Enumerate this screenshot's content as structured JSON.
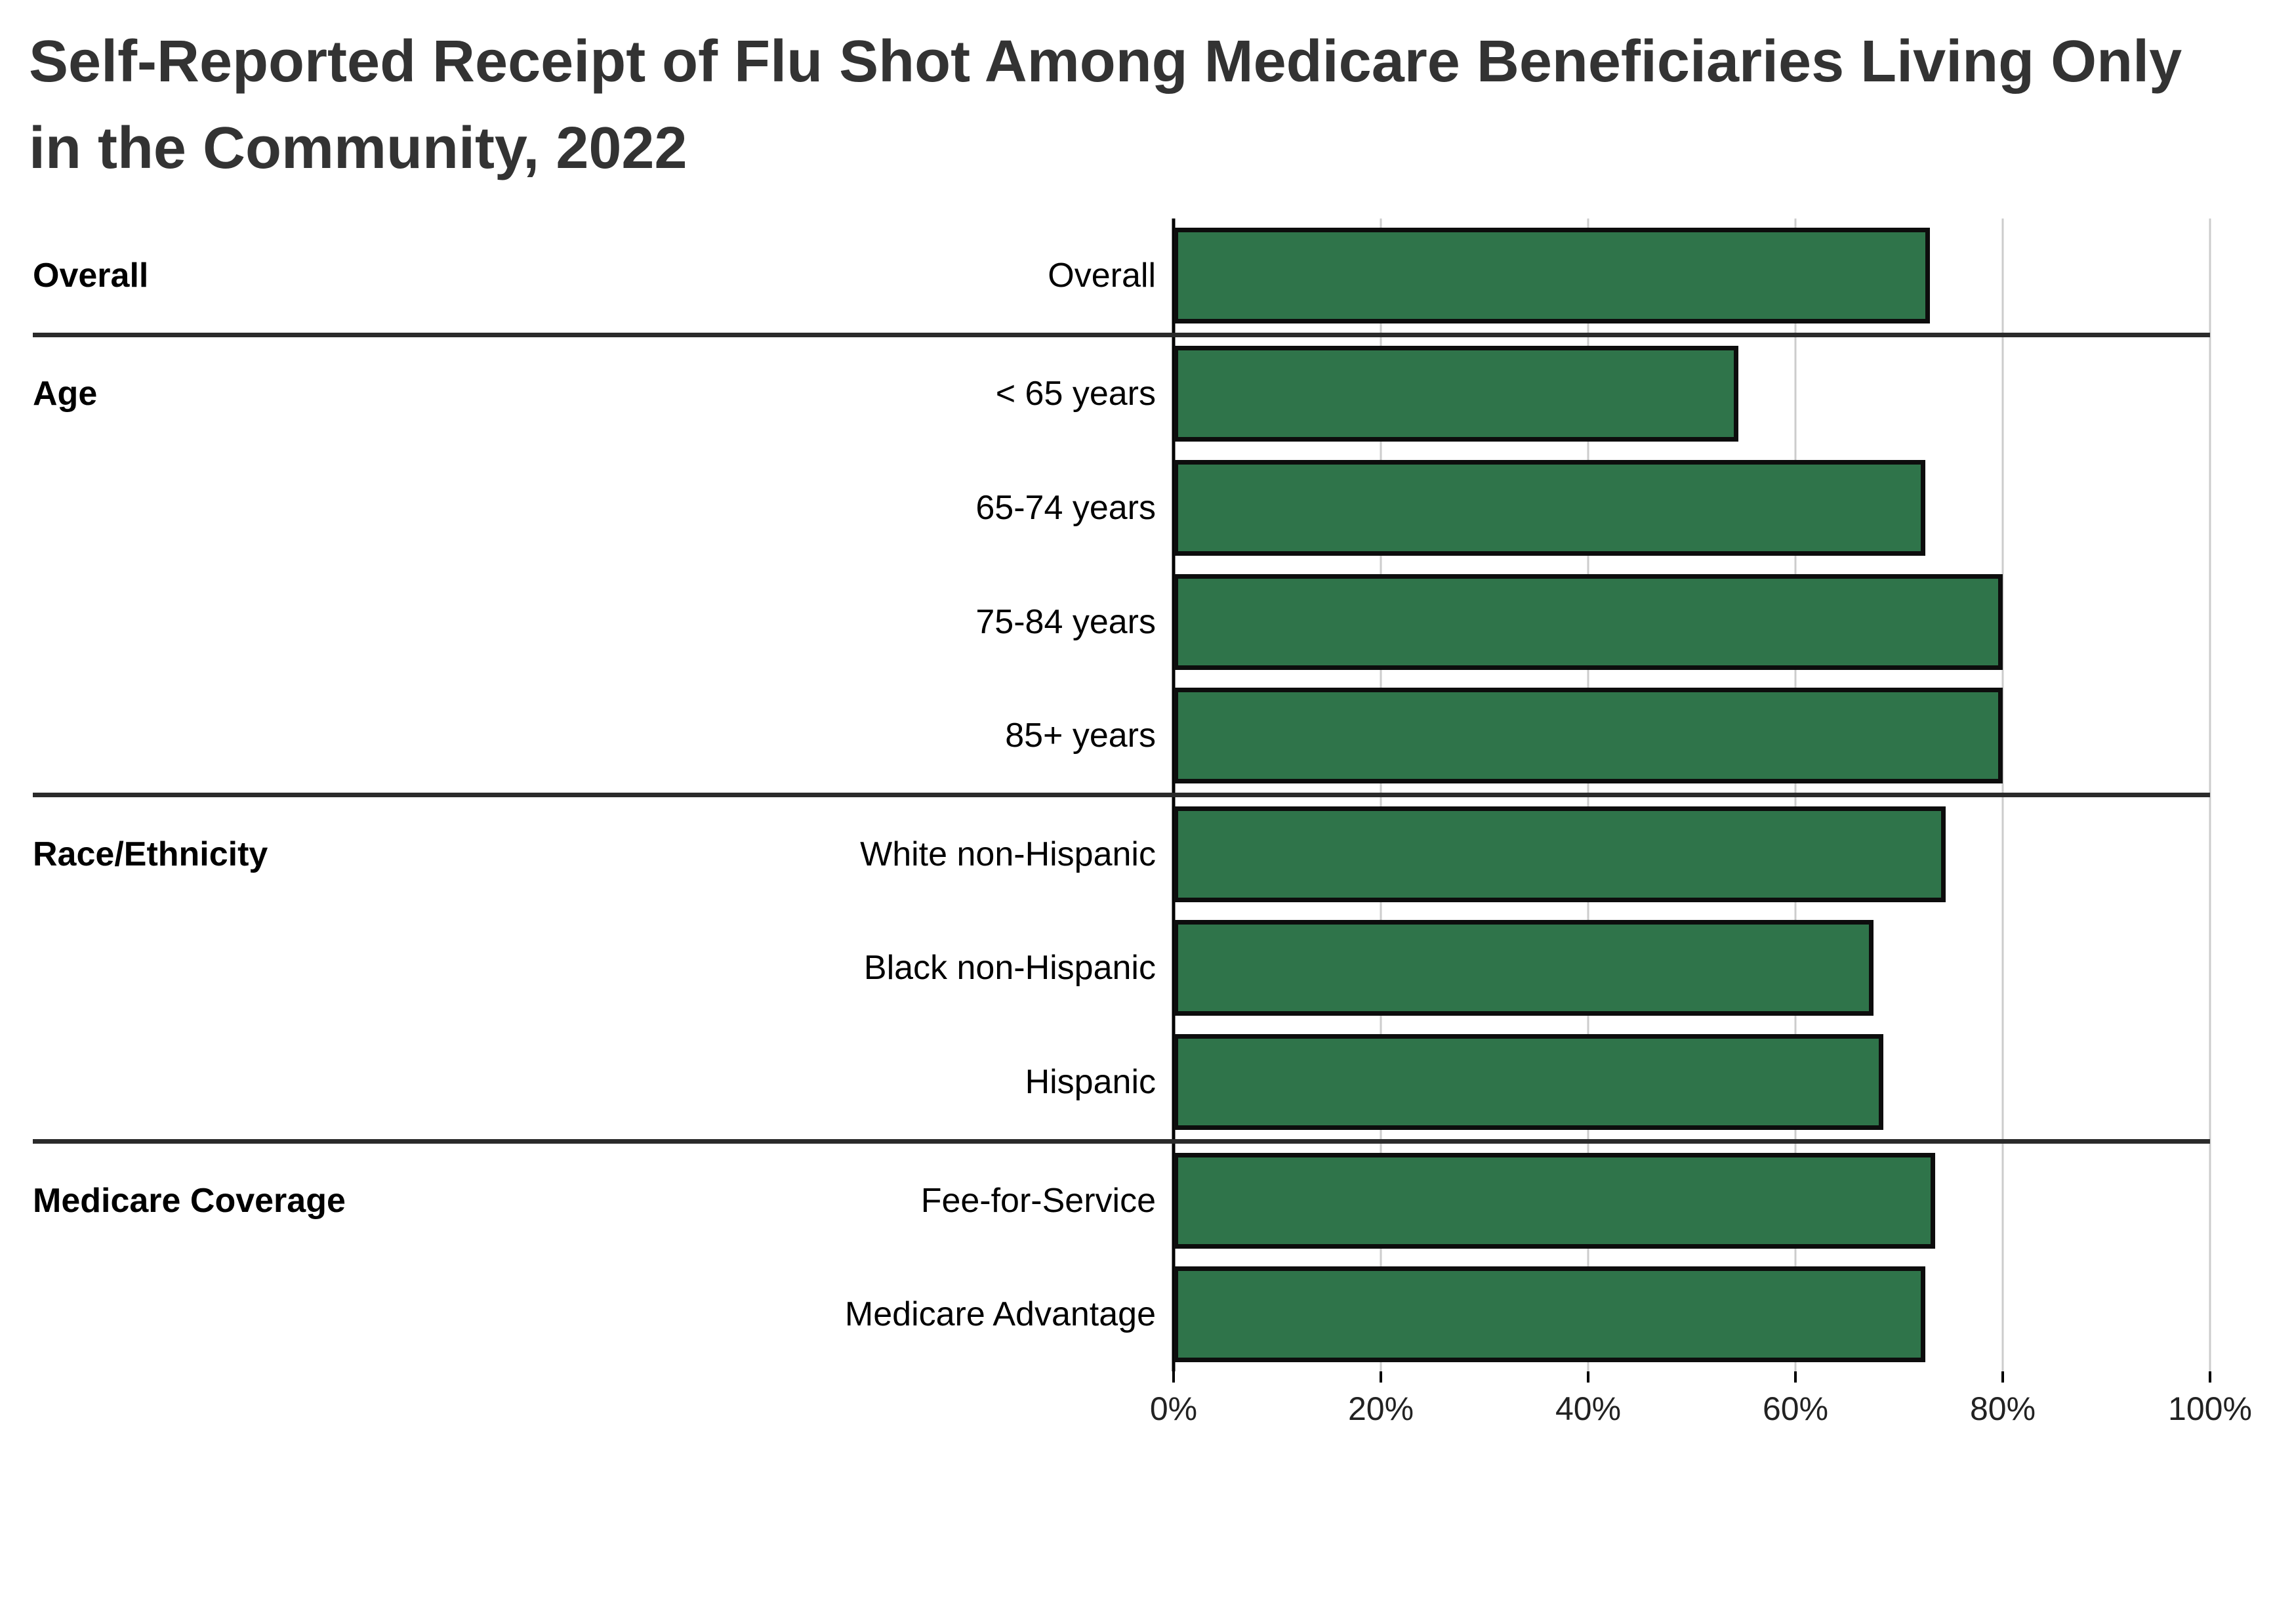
{
  "title": "Self-Reported Receipt of Flu Shot Among Medicare Beneficiaries Living Only in the Community, 2022",
  "colors": {
    "bar_fill": "#2F744A",
    "bar_border": "#0D0D0D",
    "gridline": "#CCCCCC",
    "zero_axis": "#000000",
    "separator": "#2B2B2B",
    "title_text": "#333333",
    "label_text": "#000000",
    "tick_text": "#222222"
  },
  "x_axis": {
    "min": 0,
    "max": 100,
    "ticks": [
      0,
      20,
      40,
      60,
      80,
      100
    ],
    "tick_labels": [
      "0%",
      "20%",
      "40%",
      "60%",
      "80%",
      "100%"
    ]
  },
  "chart_data": {
    "type": "bar",
    "orientation": "horizontal",
    "title": "Self-Reported Receipt of Flu Shot Among Medicare Beneficiaries Living Only in the Community, 2022",
    "unit": "percent",
    "xlim": [
      0,
      100
    ],
    "grid": "vertical",
    "legend": false,
    "groups": [
      {
        "label": "Overall",
        "rows": [
          {
            "category": "Overall",
            "value": 73
          }
        ]
      },
      {
        "label": "Age",
        "rows": [
          {
            "category": "< 65 years",
            "value": 54.5
          },
          {
            "category": "65-74 years",
            "value": 72.5
          },
          {
            "category": "75-84 years",
            "value": 80
          },
          {
            "category": "85+ years",
            "value": 80
          }
        ]
      },
      {
        "label": "Race/Ethnicity",
        "rows": [
          {
            "category": "White non-Hispanic",
            "value": 74.5
          },
          {
            "category": "Black non-Hispanic",
            "value": 67.5
          },
          {
            "category": "Hispanic",
            "value": 68.5
          }
        ]
      },
      {
        "label": "Medicare Coverage",
        "rows": [
          {
            "category": "Fee-for-Service",
            "value": 73.5
          },
          {
            "category": "Medicare Advantage",
            "value": 72.5
          }
        ]
      }
    ]
  }
}
